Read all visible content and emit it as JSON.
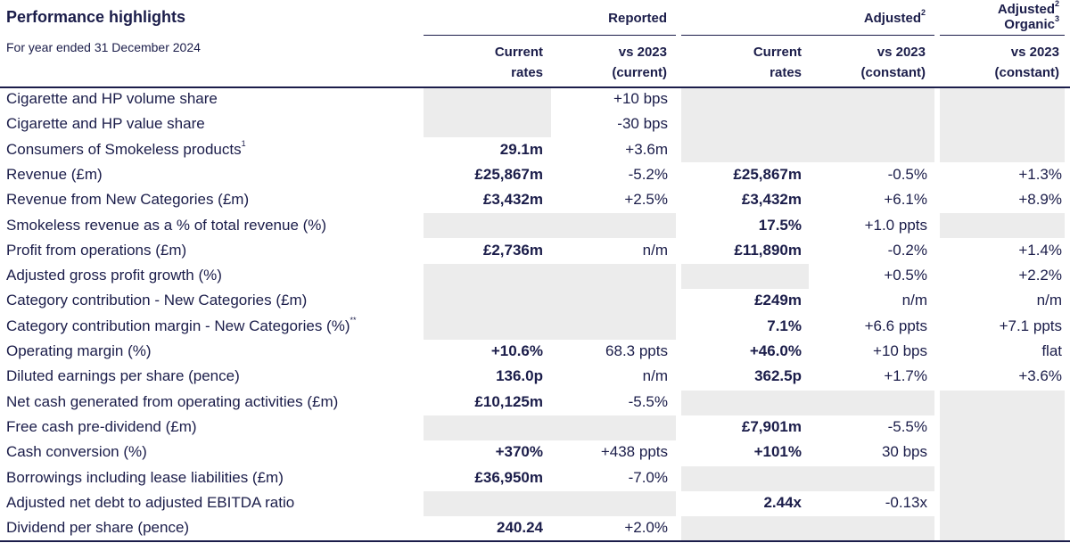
{
  "title": "Performance highlights",
  "subtitle": "For year ended 31 December 2024",
  "groups": {
    "reported": "Reported",
    "adjusted": "Adjusted",
    "adjusted_sup": "2",
    "adj_organic_1": "Adjusted",
    "adj_organic_1_sup": "2",
    "adj_organic_2": "Organic",
    "adj_organic_2_sup": "3"
  },
  "col_headers": {
    "c1_l1": "Current",
    "c1_l2": "rates",
    "c2_l1": "vs 2023",
    "c2_l2": "(current)",
    "c3_l1": "Current",
    "c3_l2": "rates",
    "c4_l1": "vs 2023",
    "c4_l2": "(constant)",
    "c5_l1": "vs 2023",
    "c5_l2": "(constant)"
  },
  "rows": [
    {
      "label": "Cigarette and HP volume share",
      "sup": "",
      "c1": "",
      "c2": "+10 bps",
      "c3": "",
      "c4": "",
      "c5": ""
    },
    {
      "label": "Cigarette and HP value share",
      "sup": "",
      "c1": "",
      "c2": "-30 bps",
      "c3": "",
      "c4": "",
      "c5": ""
    },
    {
      "label": "Consumers of Smokeless products",
      "sup": "1",
      "c1": "29.1m",
      "c2": "+3.6m",
      "c3": "",
      "c4": "",
      "c5": ""
    },
    {
      "label": "Revenue (£m)",
      "sup": "",
      "c1": "£25,867m",
      "c2": "-5.2%",
      "c3": "£25,867m",
      "c4": "-0.5%",
      "c5": "+1.3%"
    },
    {
      "label": "Revenue from New Categories (£m)",
      "sup": "",
      "c1": "£3,432m",
      "c2": "+2.5%",
      "c3": "£3,432m",
      "c4": "+6.1%",
      "c5": "+8.9%"
    },
    {
      "label": "Smokeless revenue as a % of total revenue (%)",
      "sup": "",
      "c1": "",
      "c2": "",
      "c3": "17.5%",
      "c4": "+1.0 ppts",
      "c5": ""
    },
    {
      "label": "Profit from operations (£m)",
      "sup": "",
      "c1": "£2,736m",
      "c2": "n/m",
      "c3": "£11,890m",
      "c4": "-0.2%",
      "c5": "+1.4%"
    },
    {
      "label": "Adjusted gross profit growth (%)",
      "sup": "",
      "c1": "",
      "c2": "",
      "c3": "",
      "c4": "+0.5%",
      "c5": "+2.2%"
    },
    {
      "label": "Category contribution - New Categories (£m)",
      "sup": "",
      "c1": "",
      "c2": "",
      "c3": "£249m",
      "c4": "n/m",
      "c5": "n/m"
    },
    {
      "label": "Category contribution margin - New Categories (%)",
      "sup": "**",
      "c1": "",
      "c2": "",
      "c3": "7.1%",
      "c4": "+6.6 ppts",
      "c5": "+7.1 ppts"
    },
    {
      "label": "Operating margin (%)",
      "sup": "",
      "c1": "+10.6%",
      "c2": "68.3 ppts",
      "c3": "+46.0%",
      "c4": "+10 bps",
      "c5": "flat"
    },
    {
      "label": "Diluted earnings per share (pence)",
      "sup": "",
      "c1": "136.0p",
      "c2": "n/m",
      "c3": "362.5p",
      "c4": "+1.7%",
      "c5": "+3.6%"
    },
    {
      "label": "Net cash generated from operating activities (£m)",
      "sup": "",
      "c1": "£10,125m",
      "c2": "-5.5%",
      "c3": "",
      "c4": "",
      "c5": ""
    },
    {
      "label": "Free cash pre-dividend (£m)",
      "sup": "",
      "c1": "",
      "c2": "",
      "c3": "£7,901m",
      "c4": "-5.5%",
      "c5": ""
    },
    {
      "label": "Cash conversion (%)",
      "sup": "",
      "c1": "+370%",
      "c2": "+438 ppts",
      "c3": "+101%",
      "c4": "30 bps",
      "c5": ""
    },
    {
      "label": "Borrowings including lease liabilities (£m)",
      "sup": "",
      "c1": "£36,950m",
      "c2": "-7.0%",
      "c3": "",
      "c4": "",
      "c5": ""
    },
    {
      "label": "Adjusted net debt to adjusted EBITDA ratio",
      "sup": "",
      "c1": "",
      "c2": "",
      "c3": "2.44x",
      "c4": "-0.13x",
      "c5": ""
    },
    {
      "label": "Dividend per share (pence)",
      "sup": "",
      "c1": "240.24",
      "c2": "+2.0%",
      "c3": "",
      "c4": "",
      "c5": ""
    }
  ]
}
